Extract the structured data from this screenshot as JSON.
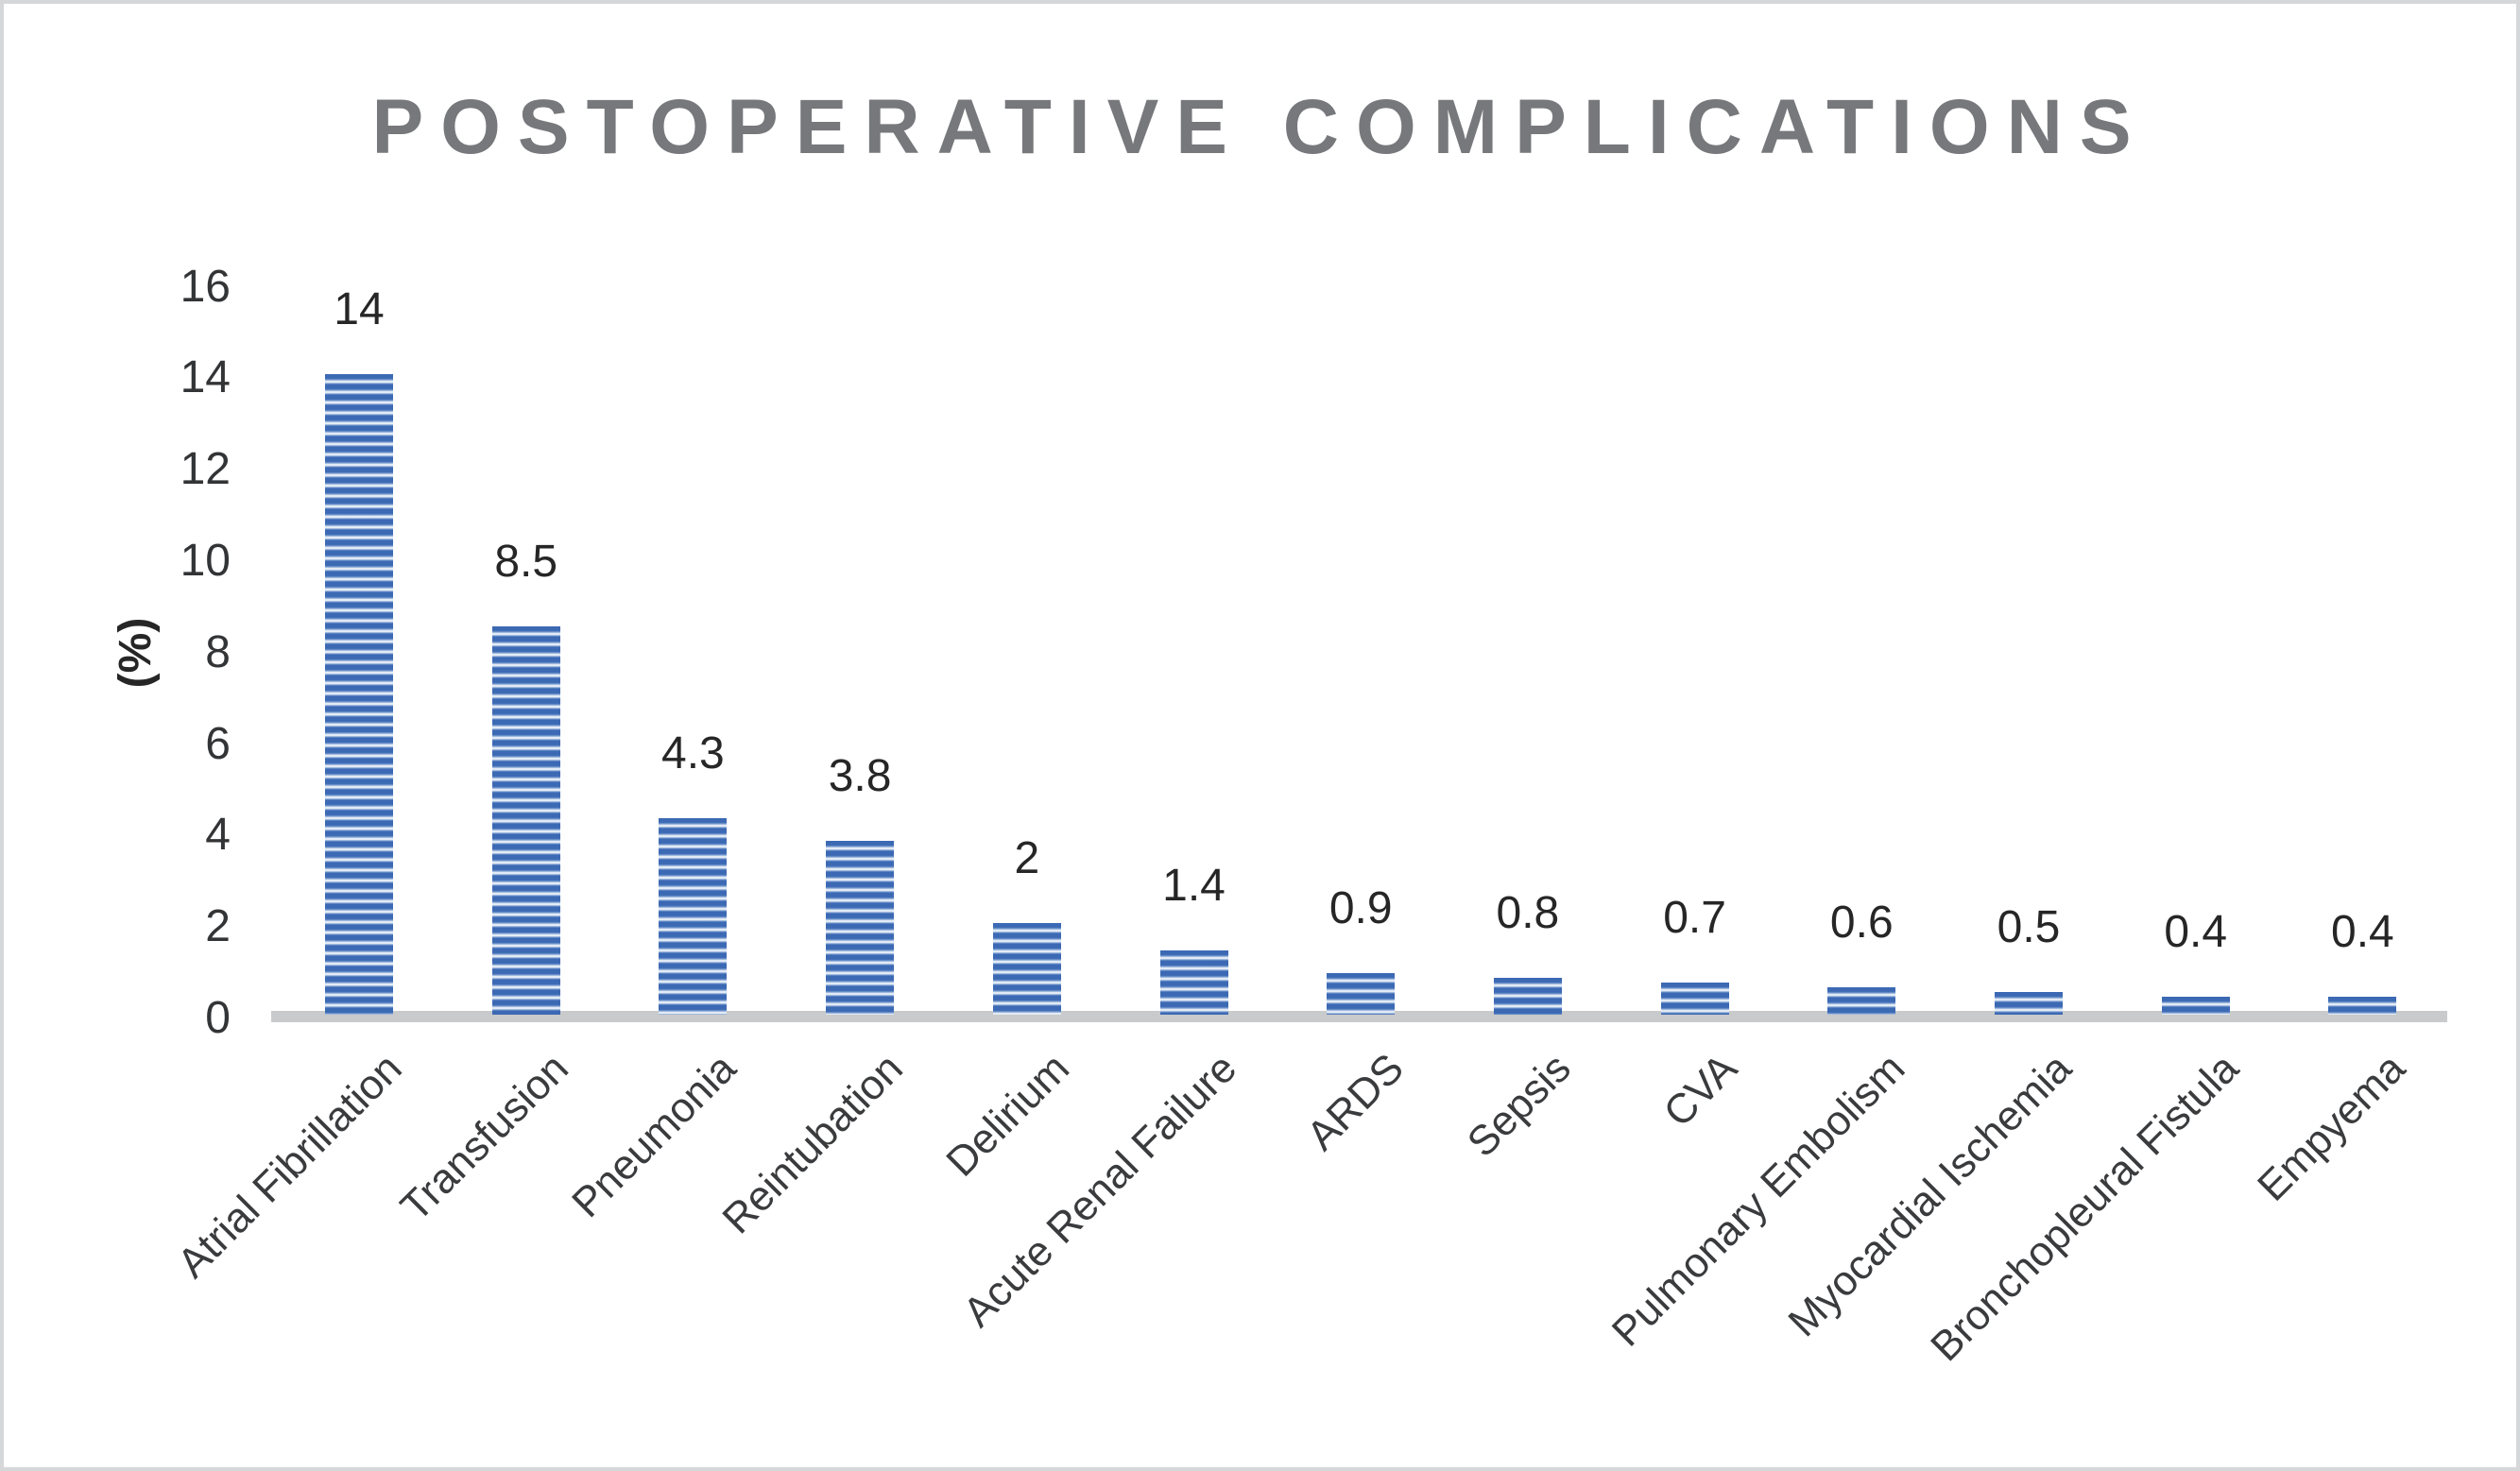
{
  "chart_data": {
    "type": "bar",
    "title": "POSTOPERATIVE COMPLICATIONS",
    "xlabel": "",
    "ylabel": "(%)",
    "categories": [
      "Atrial Fibrillation",
      "Transfusion",
      "Pneumonia",
      "Reintubation",
      "Delirium",
      "Acute Renal Failure",
      "ARDS",
      "Sepsis",
      "CVA",
      "Pulmonary Embolism",
      "Myocardial Ischemia",
      "Bronchopleural Fistula",
      "Empyema"
    ],
    "values": [
      14,
      8.5,
      4.3,
      3.8,
      2,
      1.4,
      0.9,
      0.8,
      0.7,
      0.6,
      0.5,
      0.4,
      0.4
    ],
    "data_labels": [
      "14",
      "8.5",
      "4.3",
      "3.8",
      "2",
      "1.4",
      "0.9",
      "0.8",
      "0.7",
      "0.6",
      "0.5",
      "0.4",
      "0.4"
    ],
    "yticks": [
      "0",
      "2",
      "4",
      "6",
      "8",
      "10",
      "12",
      "14",
      "16"
    ],
    "ylim": [
      0,
      16
    ],
    "grid": false,
    "legend": null,
    "bar_pattern": "horizontal-stripes",
    "colors": {
      "bar_stripe": "#3c69b4",
      "bar_stripe_light": "#e9eff8",
      "baseline": "#c9cacb",
      "title_text": "#77787b",
      "axis_text": "#333436",
      "value_text": "#262626",
      "category_text": "#3a3b3d",
      "frame_border": "#d6d7d8",
      "background": "#ffffff"
    }
  }
}
